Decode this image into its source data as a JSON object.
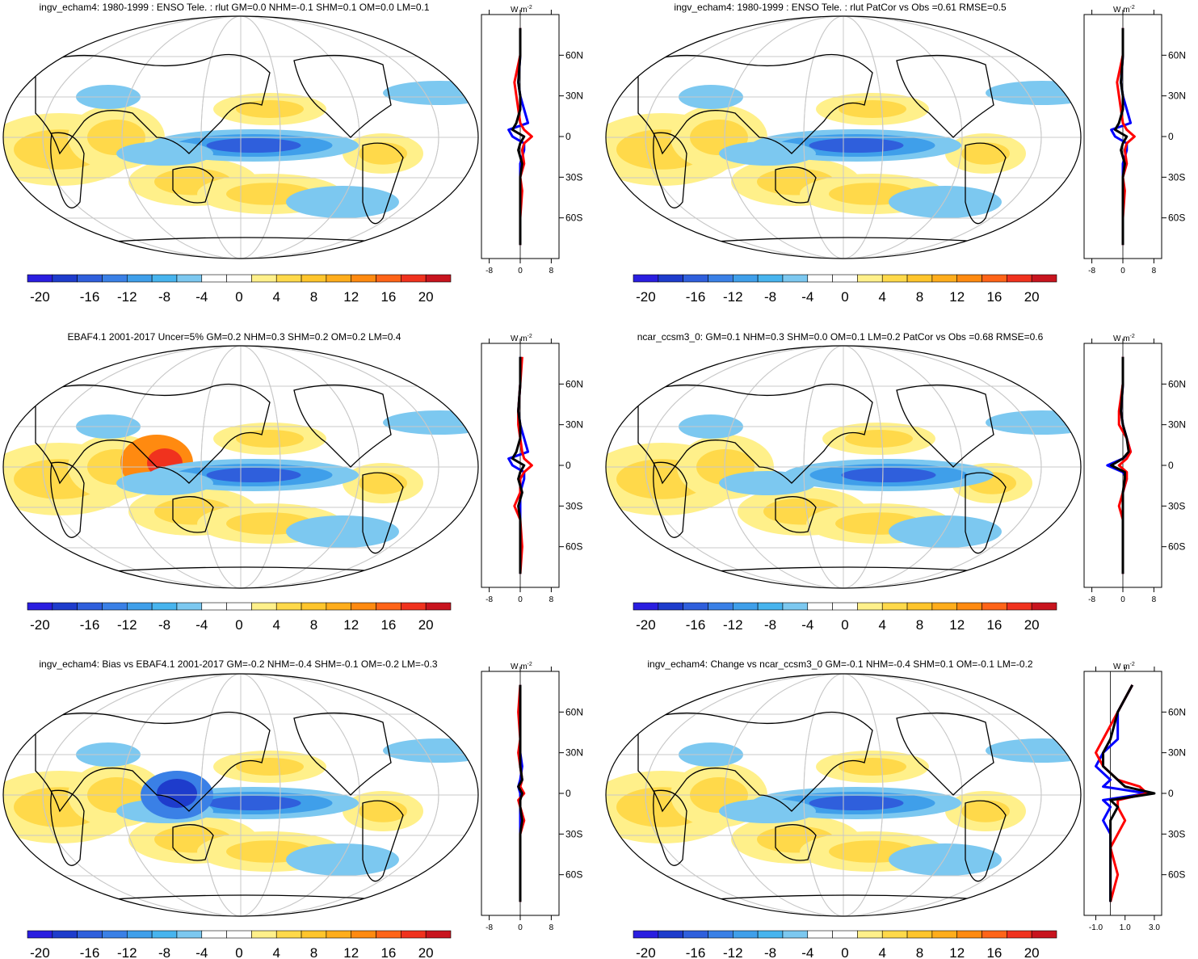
{
  "colors": {
    "palette": [
      "#2a1ee0",
      "#1e3ccc",
      "#2f5fdc",
      "#3a80e6",
      "#3f9fea",
      "#47b4ee",
      "#7cc8f0",
      "#ffffff",
      "#ffffff",
      "#fff08a",
      "#ffd94a",
      "#ffc52c",
      "#ffad1c",
      "#ff8a10",
      "#ff6418",
      "#f0321e",
      "#c8141e"
    ],
    "obs_line": "#0000ff",
    "model_line": "#ff0000",
    "diff_line": "#000000",
    "grid": "#c8c8c8"
  },
  "colorbar": {
    "labels": [
      "-20",
      "-16",
      "-12",
      "-8",
      "-4",
      "0",
      "4",
      "8",
      "12",
      "16",
      "20"
    ]
  },
  "zonal_axis": {
    "unit": "W m",
    "unit_sup": "-2",
    "lat_labels": [
      "60N",
      "30N",
      "0",
      "30S",
      "60S"
    ],
    "x_ticks_default": [
      "-8",
      "0",
      "8"
    ],
    "x_ticks_change": [
      "-1.0",
      "1.0",
      "3.0"
    ]
  },
  "panels": [
    {
      "id": "p1",
      "title": "ingv_echam4: 1980-1999 : ENSO Tele. : rlut GM=0.0 NHM=-0.1 SHM=0.1 OM=0.0 LM=0.1"
    },
    {
      "id": "p2",
      "title": "ingv_echam4: 1980-1999 : ENSO Tele. : rlut PatCor vs Obs =0.61 RMSE=0.5"
    },
    {
      "id": "p3",
      "title": "EBAF4.1 2001-2017 Uncer=5% GM=0.2 NHM=0.3 SHM=0.2 OM=0.2 LM=0.4"
    },
    {
      "id": "p4",
      "title": "ncar_ccsm3_0: GM=0.1 NHM=0.3 SHM=0.0 OM=0.1 LM=0.2 PatCor vs Obs =0.68 RMSE=0.6"
    },
    {
      "id": "p5",
      "title": "ingv_echam4: Bias vs EBAF4.1 2001-2017 GM=-0.2 NHM=-0.4 SHM=-0.1 OM=-0.2 LM=-0.3"
    },
    {
      "id": "p6",
      "title": "ingv_echam4: Change vs ncar_ccsm3_0 GM=-0.1 NHM=-0.4 SHM=0.1 OM=-0.1 LM=-0.2"
    }
  ],
  "chart_data": [
    {
      "type": "heatmap",
      "title": "ingv_echam4: 1980-1999 : ENSO Tele. : rlut GM=0.0 NHM=-0.1 SHM=0.1 OM=0.0 LM=0.1",
      "colorbar_range": [
        -20,
        20
      ],
      "zonal_profile": {
        "lat": [
          80,
          60,
          40,
          30,
          20,
          10,
          5,
          0,
          -5,
          -10,
          -20,
          -30,
          -40,
          -60,
          -80
        ],
        "obs": [
          0,
          0,
          -0.5,
          0,
          1,
          2,
          -3,
          -2,
          1,
          1,
          0,
          0,
          0,
          0,
          0
        ],
        "model": [
          0,
          0,
          -1.5,
          -1,
          -0.5,
          0,
          1,
          3,
          1,
          0.5,
          1,
          0,
          0.5,
          0,
          0
        ],
        "diff": [
          0,
          0,
          -0.5,
          0,
          0,
          -1,
          -2,
          1,
          0,
          -0.5,
          0.5,
          0,
          0,
          0,
          0
        ]
      }
    },
    {
      "type": "heatmap",
      "title": "ingv_echam4: 1980-1999 : ENSO Tele. : rlut PatCor vs Obs =0.61 RMSE=0.5",
      "colorbar_range": [
        -20,
        20
      ],
      "zonal_profile": {
        "lat": [
          80,
          60,
          40,
          30,
          20,
          10,
          5,
          0,
          -5,
          -10,
          -20,
          -30,
          -40,
          -60,
          -80
        ],
        "obs": [
          0,
          0,
          -0.5,
          0,
          1,
          2,
          -3,
          -2,
          1,
          1,
          0,
          0,
          0,
          0,
          0
        ],
        "model": [
          0,
          0,
          -1.5,
          -1,
          -0.5,
          0,
          1,
          3,
          1,
          0.5,
          1,
          0,
          0.5,
          0,
          0
        ],
        "diff": [
          0,
          0,
          -0.5,
          0,
          0,
          -1,
          -2,
          1,
          0,
          -0.5,
          0.5,
          0,
          0,
          0,
          0
        ]
      }
    },
    {
      "type": "heatmap",
      "title": "EBAF4.1 2001-2017 Uncer=5% GM=0.2 NHM=0.3 SHM=0.2 OM=0.2 LM=0.4",
      "colorbar_range": [
        -20,
        20
      ],
      "zonal_profile": {
        "lat": [
          80,
          60,
          40,
          30,
          20,
          10,
          5,
          0,
          -5,
          -10,
          -20,
          -30,
          -40,
          -60,
          -80
        ],
        "obs": [
          0,
          0,
          -0.5,
          0,
          1,
          2,
          -3,
          -2,
          1,
          1,
          0,
          0,
          0,
          0,
          0
        ],
        "model": [
          0.5,
          0,
          -0.5,
          -0.5,
          0,
          0.5,
          1,
          3,
          1,
          0,
          0,
          -1.5,
          0,
          0.5,
          0
        ],
        "diff": [
          0,
          0,
          -0.5,
          0,
          0,
          -1,
          -2,
          1,
          0,
          -0.5,
          0.5,
          -0.5,
          0,
          0,
          0
        ]
      }
    },
    {
      "type": "heatmap",
      "title": "ncar_ccsm3_0: GM=0.1 NHM=0.3 SHM=0.0 OM=0.1 LM=0.2 PatCor vs Obs =0.68 RMSE=0.6",
      "colorbar_range": [
        -20,
        20
      ],
      "zonal_profile": {
        "lat": [
          80,
          60,
          40,
          30,
          20,
          10,
          5,
          0,
          -5,
          -10,
          -20,
          -30,
          -40,
          -60,
          -80
        ],
        "obs": [
          0,
          0,
          -0.5,
          0,
          1,
          2,
          0,
          -4,
          0,
          1,
          0,
          0,
          0,
          0,
          0
        ],
        "model": [
          0,
          0,
          -1,
          -1,
          1,
          2,
          1,
          -1,
          1,
          1,
          0,
          -1,
          0,
          0,
          0
        ],
        "diff": [
          0,
          0,
          -0.5,
          0,
          1,
          1.5,
          0,
          -3,
          0.5,
          0.5,
          0,
          0,
          0,
          0,
          0
        ]
      }
    },
    {
      "type": "heatmap",
      "title": "ingv_echam4: Bias vs EBAF4.1 2001-2017 GM=-0.2 NHM=-0.4 SHM=-0.1 OM=-0.2 LM=-0.3",
      "colorbar_range": [
        -20,
        20
      ],
      "zonal_profile": {
        "lat": [
          80,
          60,
          40,
          30,
          20,
          10,
          5,
          0,
          -5,
          -10,
          -20,
          -30,
          -40,
          -60,
          -80
        ],
        "obs": [
          0,
          0,
          0,
          0,
          0.5,
          0,
          -0.5,
          0,
          0,
          0,
          0,
          0,
          0,
          0,
          0
        ],
        "model": [
          0,
          -0.5,
          0,
          -0.5,
          0,
          0.5,
          0,
          1,
          -0.5,
          0,
          1,
          0,
          0,
          0,
          0
        ],
        "diff": [
          0,
          0,
          0,
          0,
          0,
          0.5,
          -0.5,
          0.5,
          0,
          0,
          0.5,
          0,
          0,
          0,
          0
        ]
      }
    },
    {
      "type": "heatmap",
      "title": "ingv_echam4: Change vs ncar_ccsm3_0 GM=-0.1 NHM=-0.4 SHM=0.1 OM=-0.1 LM=-0.2",
      "colorbar_range": [
        -20,
        20
      ],
      "zonal_profile": {
        "lat": [
          80,
          60,
          40,
          30,
          20,
          10,
          5,
          0,
          -5,
          -10,
          -20,
          -30,
          -40,
          -60,
          -80
        ],
        "obs": [
          1.5,
          0.5,
          0.5,
          -0.5,
          -1,
          0,
          -0.5,
          2.5,
          -0.5,
          0,
          -0.5,
          0,
          0,
          0,
          0
        ],
        "model": [
          1.5,
          0.5,
          -0.5,
          -1,
          -0.5,
          0.5,
          2,
          2.5,
          0.5,
          0.5,
          1,
          0.5,
          0,
          0.5,
          0
        ],
        "diff": [
          1.5,
          0.5,
          0,
          -0.5,
          -0.5,
          0.5,
          1,
          3,
          0,
          0.5,
          0,
          0,
          0,
          0,
          0
        ]
      }
    }
  ]
}
